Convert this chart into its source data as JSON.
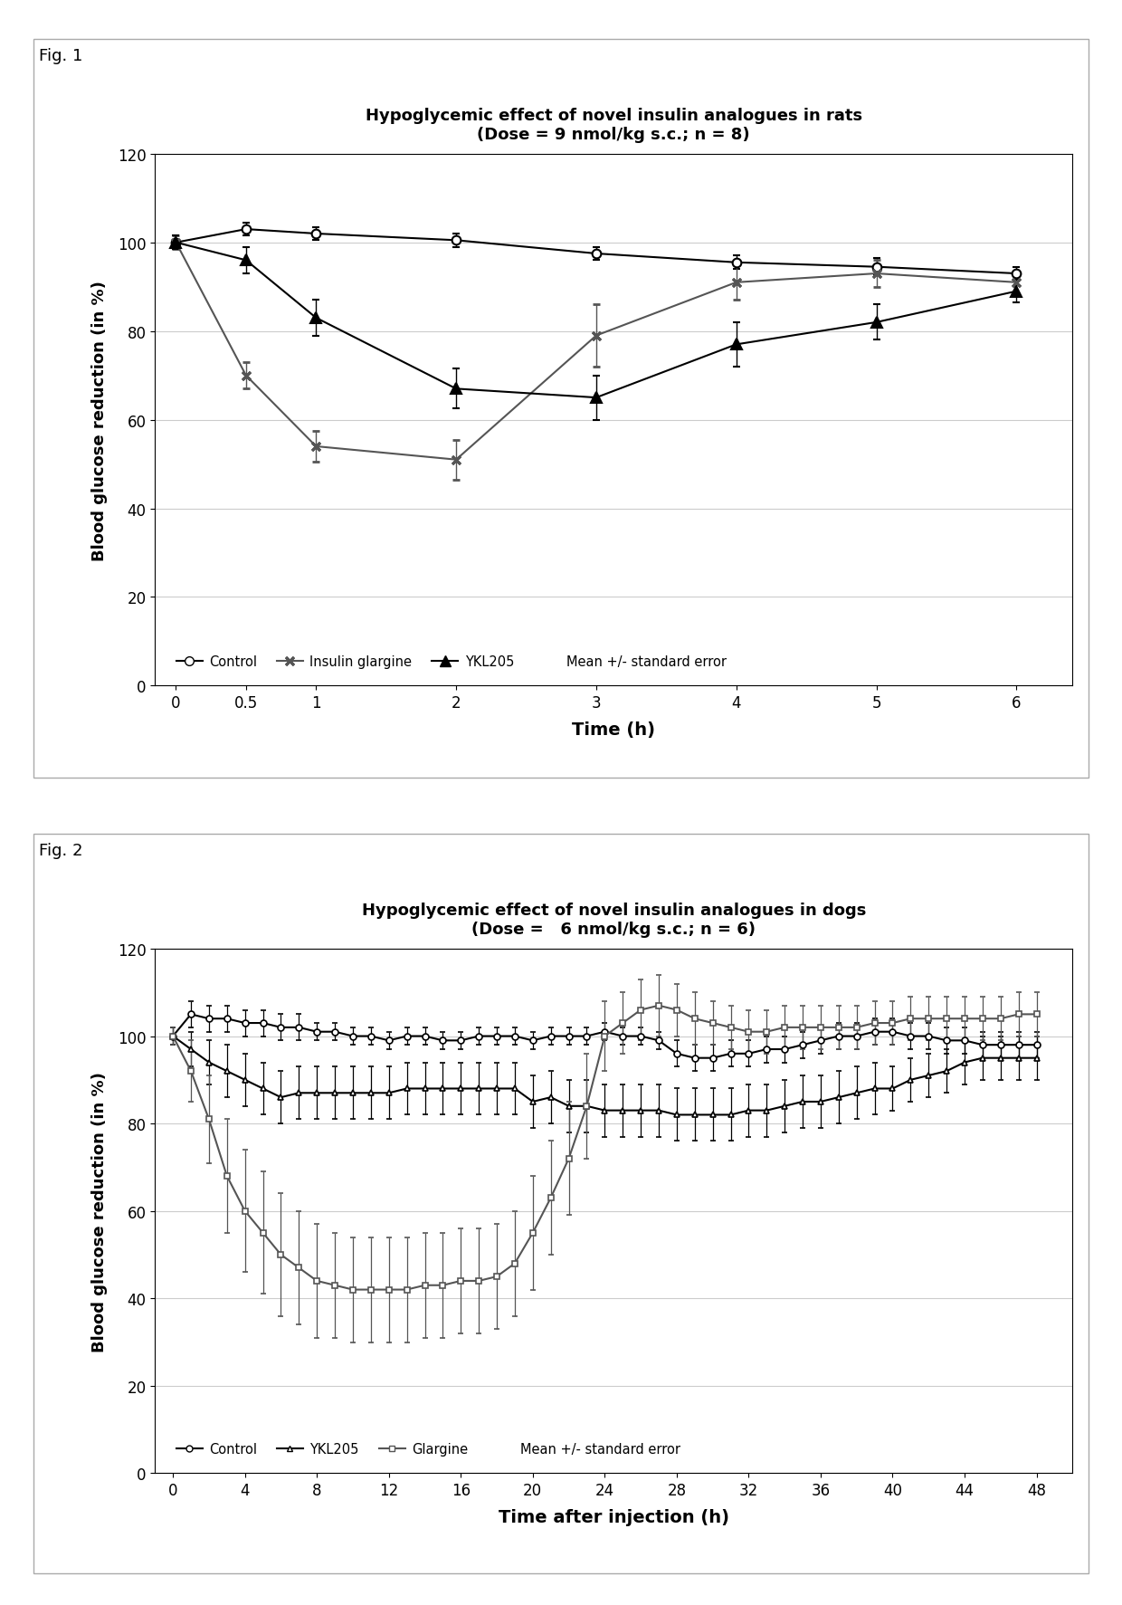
{
  "fig1": {
    "title_line1": "Hypoglycemic effect of novel insulin analogues in rats",
    "title_line2": "(Dose = 9 nmol/kg s.c.; n = 8)",
    "xlabel": "Time (h)",
    "ylabel": "Blood glucose reduction (in %)",
    "ylim": [
      0,
      120
    ],
    "yticks": [
      0,
      20,
      40,
      60,
      80,
      100,
      120
    ],
    "xlim": [
      -0.15,
      6.4
    ],
    "xticks": [
      0,
      0.5,
      1,
      2,
      3,
      4,
      5,
      6
    ],
    "xticklabels": [
      "0",
      "0.5",
      "1",
      "2",
      "3",
      "4",
      "5",
      "6"
    ],
    "control": {
      "x": [
        0,
        0.5,
        1,
        2,
        3,
        4,
        5,
        6
      ],
      "y": [
        100,
        103,
        102,
        100.5,
        97.5,
        95.5,
        94.5,
        93
      ],
      "yerr": [
        1.5,
        1.5,
        1.5,
        1.5,
        1.5,
        1.5,
        2.0,
        1.5
      ]
    },
    "glargine": {
      "x": [
        0,
        0.5,
        1,
        2,
        3,
        4,
        5,
        6
      ],
      "y": [
        100,
        70,
        54,
        51,
        79,
        91,
        93,
        91
      ],
      "yerr": [
        1.5,
        3.0,
        3.5,
        4.5,
        7.0,
        4.0,
        3.0,
        2.5
      ]
    },
    "ykl205": {
      "x": [
        0,
        0.5,
        1,
        2,
        3,
        4,
        5,
        6
      ],
      "y": [
        100,
        96,
        83,
        67,
        65,
        77,
        82,
        89
      ],
      "yerr": [
        1.5,
        3.0,
        4.0,
        4.5,
        5.0,
        5.0,
        4.0,
        2.5
      ]
    }
  },
  "fig2": {
    "title_line1": "Hypoglycemic effect of novel insulin analogues in dogs",
    "title_line2": "(Dose =   6 nmol/kg s.c.; n = 6)",
    "xlabel": "Time after injection (h)",
    "ylabel": "Blood glucose reduction (in %)",
    "ylim": [
      0,
      120
    ],
    "yticks": [
      0,
      20,
      40,
      60,
      80,
      100,
      120
    ],
    "xlim": [
      -1.0,
      50
    ],
    "xticks": [
      0,
      4,
      8,
      12,
      16,
      20,
      24,
      28,
      32,
      36,
      40,
      44,
      48
    ],
    "xticklabels": [
      "0",
      "4",
      "8",
      "12",
      "16",
      "20",
      "24",
      "28",
      "32",
      "36",
      "40",
      "44",
      "48"
    ],
    "control": {
      "x": [
        0,
        1,
        2,
        3,
        4,
        5,
        6,
        7,
        8,
        9,
        10,
        11,
        12,
        13,
        14,
        15,
        16,
        17,
        18,
        19,
        20,
        21,
        22,
        23,
        24,
        25,
        26,
        27,
        28,
        29,
        30,
        31,
        32,
        33,
        34,
        35,
        36,
        37,
        38,
        39,
        40,
        41,
        42,
        43,
        44,
        45,
        46,
        47,
        48
      ],
      "y": [
        100,
        105,
        104,
        104,
        103,
        103,
        102,
        102,
        101,
        101,
        100,
        100,
        99,
        100,
        100,
        99,
        99,
        100,
        100,
        100,
        99,
        100,
        100,
        100,
        101,
        100,
        100,
        99,
        96,
        95,
        95,
        96,
        96,
        97,
        97,
        98,
        99,
        100,
        100,
        101,
        101,
        100,
        100,
        99,
        99,
        98,
        98,
        98,
        98
      ],
      "yerr": [
        2,
        3,
        3,
        3,
        3,
        3,
        3,
        3,
        2,
        2,
        2,
        2,
        2,
        2,
        2,
        2,
        2,
        2,
        2,
        2,
        2,
        2,
        2,
        2,
        2,
        2,
        2,
        2,
        3,
        3,
        3,
        3,
        3,
        3,
        3,
        3,
        3,
        3,
        3,
        3,
        3,
        3,
        3,
        3,
        3,
        3,
        3,
        3,
        3
      ]
    },
    "ykl205": {
      "x": [
        0,
        1,
        2,
        3,
        4,
        5,
        6,
        7,
        8,
        9,
        10,
        11,
        12,
        13,
        14,
        15,
        16,
        17,
        18,
        19,
        20,
        21,
        22,
        23,
        24,
        25,
        26,
        27,
        28,
        29,
        30,
        31,
        32,
        33,
        34,
        35,
        36,
        37,
        38,
        39,
        40,
        41,
        42,
        43,
        44,
        45,
        46,
        47,
        48
      ],
      "y": [
        100,
        97,
        94,
        92,
        90,
        88,
        86,
        87,
        87,
        87,
        87,
        87,
        87,
        88,
        88,
        88,
        88,
        88,
        88,
        88,
        85,
        86,
        84,
        84,
        83,
        83,
        83,
        83,
        82,
        82,
        82,
        82,
        83,
        83,
        84,
        85,
        85,
        86,
        87,
        88,
        88,
        90,
        91,
        92,
        94,
        95,
        95,
        95,
        95
      ],
      "yerr": [
        2,
        4,
        5,
        6,
        6,
        6,
        6,
        6,
        6,
        6,
        6,
        6,
        6,
        6,
        6,
        6,
        6,
        6,
        6,
        6,
        6,
        6,
        6,
        6,
        6,
        6,
        6,
        6,
        6,
        6,
        6,
        6,
        6,
        6,
        6,
        6,
        6,
        6,
        6,
        6,
        5,
        5,
        5,
        5,
        5,
        5,
        5,
        5,
        5
      ]
    },
    "glargine": {
      "x": [
        0,
        1,
        2,
        3,
        4,
        5,
        6,
        7,
        8,
        9,
        10,
        11,
        12,
        13,
        14,
        15,
        16,
        17,
        18,
        19,
        20,
        21,
        22,
        23,
        24,
        25,
        26,
        27,
        28,
        29,
        30,
        31,
        32,
        33,
        34,
        35,
        36,
        37,
        38,
        39,
        40,
        41,
        42,
        43,
        44,
        45,
        46,
        47,
        48
      ],
      "y": [
        100,
        92,
        81,
        68,
        60,
        55,
        50,
        47,
        44,
        43,
        42,
        42,
        42,
        42,
        43,
        43,
        44,
        44,
        45,
        48,
        55,
        63,
        72,
        84,
        100,
        103,
        106,
        107,
        106,
        104,
        103,
        102,
        101,
        101,
        102,
        102,
        102,
        102,
        102,
        103,
        103,
        104,
        104,
        104,
        104,
        104,
        104,
        105,
        105
      ],
      "yerr": [
        2,
        7,
        10,
        13,
        14,
        14,
        14,
        13,
        13,
        12,
        12,
        12,
        12,
        12,
        12,
        12,
        12,
        12,
        12,
        12,
        13,
        13,
        13,
        12,
        8,
        7,
        7,
        7,
        6,
        6,
        5,
        5,
        5,
        5,
        5,
        5,
        5,
        5,
        5,
        5,
        5,
        5,
        5,
        5,
        5,
        5,
        5,
        5,
        5
      ]
    }
  }
}
